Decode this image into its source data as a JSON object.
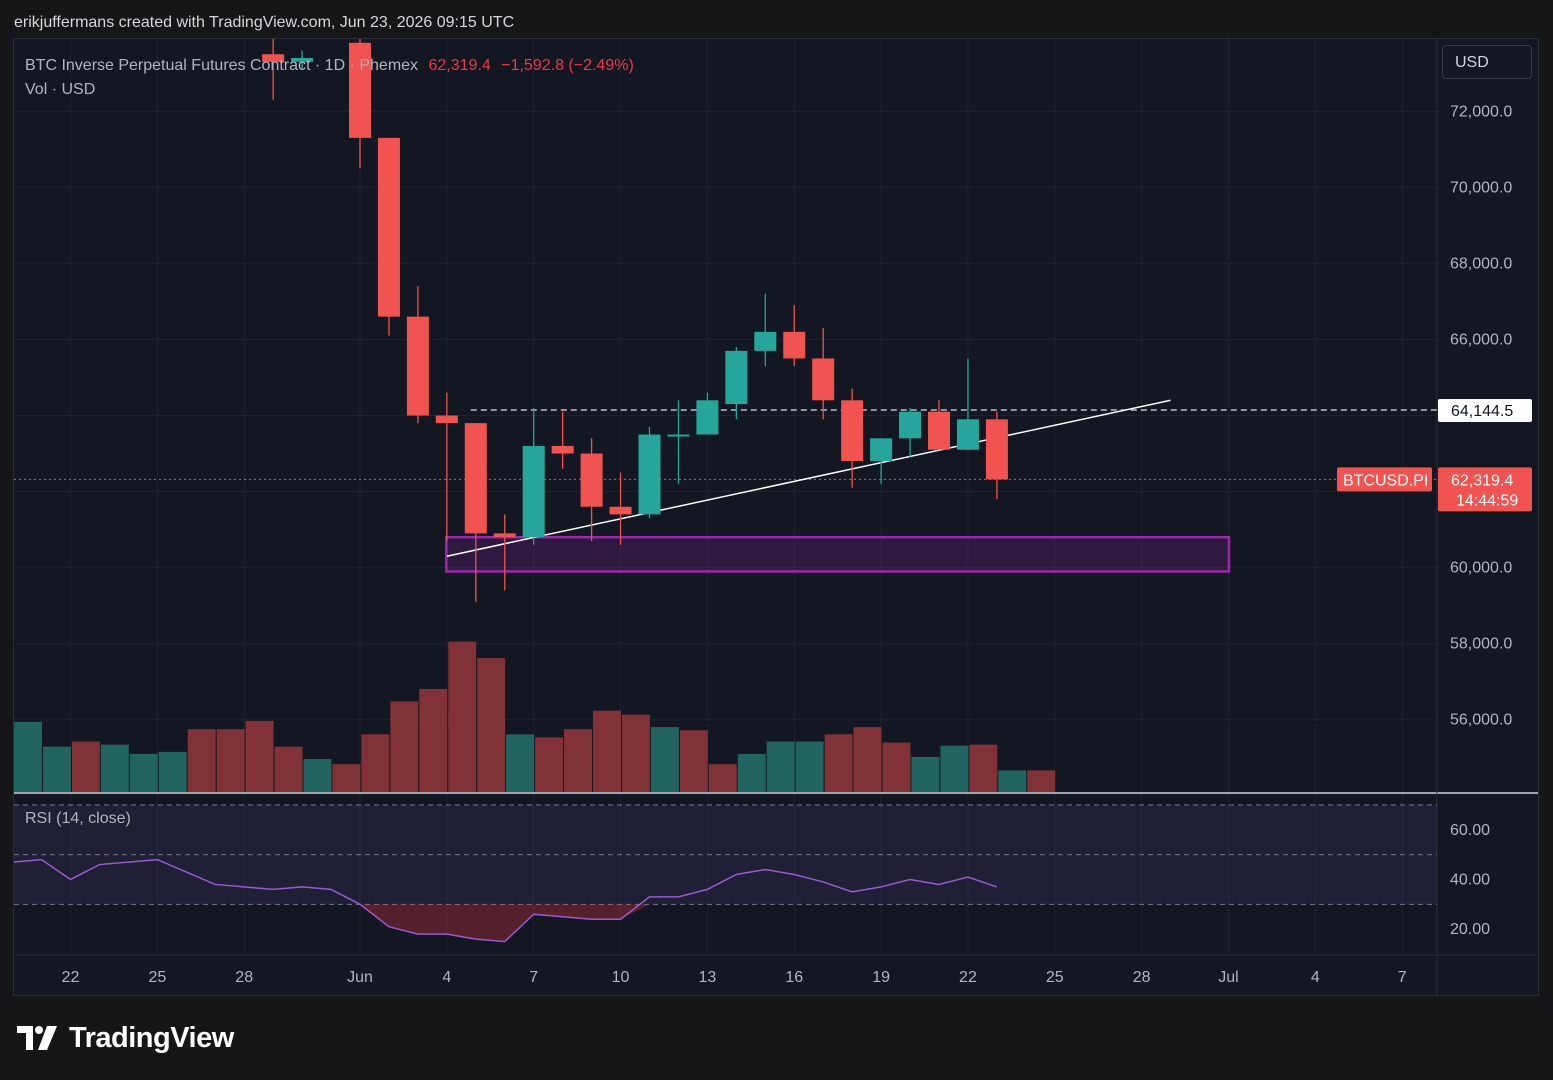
{
  "header": {
    "author_line": "erikjuffermans created with TradingView.com, Jun 23, 2026 09:15 UTC"
  },
  "legend": {
    "symbol": "BTC Inverse Perpetual Futures Contract · 1D · Phemex",
    "last": "62,319.4",
    "change": "−1,592.8 (−2.49%)",
    "volume_label": "Vol · USD"
  },
  "currency_button": "USD",
  "price_scale_labels": [
    "72,000.0",
    "70,000.0",
    "68,000.0",
    "66,000.0",
    "60,000.0",
    "58,000.0",
    "56,000.0"
  ],
  "horizontal_line_label": "64,144.5",
  "last_price": {
    "symbol": "BTCUSD.PI",
    "price": "62,319.4",
    "countdown": "14:44:59"
  },
  "rsi": {
    "label": "RSI (14, close)",
    "scale_labels": [
      "60.00",
      "40.00",
      "20.00"
    ]
  },
  "time_axis_labels": [
    "22",
    "25",
    "28",
    "Jun",
    "4",
    "7",
    "10",
    "13",
    "16",
    "19",
    "22",
    "25",
    "28",
    "Jul",
    "4",
    "7"
  ],
  "branding": {
    "logo_text": "TradingView"
  },
  "colors": {
    "up": "#26a69a",
    "down": "#f05350",
    "background": "#131722",
    "zone": "#9c27b0",
    "rsi_line": "#9c59d1"
  },
  "chart_data": {
    "type": "candlestick",
    "ylim": [
      54100,
      73900
    ],
    "x_axis_ticks": [
      "22",
      "25",
      "28",
      "Jun",
      "4",
      "7",
      "10",
      "13",
      "16",
      "19",
      "22",
      "25",
      "28",
      "Jul",
      "4",
      "7"
    ],
    "candles": [
      {
        "date": "May 29",
        "open": 73500,
        "high": 73900,
        "low": 72300,
        "close": 73300
      },
      {
        "date": "May 30",
        "open": 73300,
        "high": 73600,
        "low": 73100,
        "close": 73400
      },
      {
        "date": "Jun 1",
        "open": 73800,
        "high": 73900,
        "low": 70500,
        "close": 71300
      },
      {
        "date": "Jun 2",
        "open": 71300,
        "high": 71300,
        "low": 66100,
        "close": 66600
      },
      {
        "date": "Jun 3",
        "open": 66600,
        "high": 67400,
        "low": 63800,
        "close": 64000
      },
      {
        "date": "Jun 4",
        "open": 64000,
        "high": 64600,
        "low": 60700,
        "close": 63800
      },
      {
        "date": "Jun 5",
        "open": 63800,
        "high": 63800,
        "low": 59100,
        "close": 60900
      },
      {
        "date": "Jun 6",
        "open": 60900,
        "high": 61400,
        "low": 59400,
        "close": 60800
      },
      {
        "date": "Jun 7",
        "open": 60800,
        "high": 64200,
        "low": 60600,
        "close": 63200
      },
      {
        "date": "Jun 8",
        "open": 63200,
        "high": 64100,
        "low": 62600,
        "close": 63000
      },
      {
        "date": "Jun 9",
        "open": 63000,
        "high": 63400,
        "low": 60700,
        "close": 61600
      },
      {
        "date": "Jun 10",
        "open": 61600,
        "high": 62500,
        "low": 60600,
        "close": 61400
      },
      {
        "date": "Jun 11",
        "open": 61400,
        "high": 63700,
        "low": 61300,
        "close": 63500
      },
      {
        "date": "Jun 12",
        "open": 63500,
        "high": 64400,
        "low": 62200,
        "close": 63500
      },
      {
        "date": "Jun 13",
        "open": 63500,
        "high": 64600,
        "low": 63500,
        "close": 64400
      },
      {
        "date": "Jun 14",
        "open": 64300,
        "high": 65800,
        "low": 63900,
        "close": 65700
      },
      {
        "date": "Jun 15",
        "open": 65700,
        "high": 67200,
        "low": 65300,
        "close": 66200
      },
      {
        "date": "Jun 16",
        "open": 66200,
        "high": 66900,
        "low": 65300,
        "close": 65500
      },
      {
        "date": "Jun 17",
        "open": 65500,
        "high": 66300,
        "low": 63900,
        "close": 64400
      },
      {
        "date": "Jun 18",
        "open": 64400,
        "high": 64700,
        "low": 62100,
        "close": 62800
      },
      {
        "date": "Jun 19",
        "open": 62800,
        "high": 63400,
        "low": 62200,
        "close": 63400
      },
      {
        "date": "Jun 20",
        "open": 63400,
        "high": 64200,
        "low": 62900,
        "close": 64100
      },
      {
        "date": "Jun 21",
        "open": 64100,
        "high": 64400,
        "low": 63100,
        "close": 63100
      },
      {
        "date": "Jun 22",
        "open": 63100,
        "high": 65500,
        "low": 63100,
        "close": 63900
      },
      {
        "date": "Jun 23",
        "open": 63900,
        "high": 64100,
        "low": 61800,
        "close": 62319.4
      }
    ],
    "horizontal_line": 64144.5,
    "last_price": 62319.4,
    "trendline": {
      "from": {
        "date": "Jun 4",
        "price": 60300
      },
      "to": {
        "date": "Jun 29",
        "price": 64400
      }
    },
    "support_zone": {
      "from": "Jun 4",
      "to": "Jul 1",
      "low": 59900,
      "high": 60800
    },
    "volume": {
      "direction": [
        "up",
        "up",
        "down",
        "up",
        "up",
        "up",
        "down",
        "down",
        "down",
        "down",
        "up",
        "down",
        "down",
        "down",
        "down",
        "down",
        "down",
        "up",
        "down",
        "down",
        "down",
        "down",
        "up",
        "down",
        "down",
        "up",
        "up",
        "up",
        "down",
        "down",
        "down",
        "up",
        "up",
        "down",
        "up",
        "down"
      ],
      "levels": [
        0.68,
        0.44,
        0.49,
        0.46,
        0.37,
        0.39,
        0.61,
        0.61,
        0.69,
        0.44,
        0.32,
        0.27,
        0.56,
        0.88,
        1.0,
        1.46,
        1.3,
        0.56,
        0.53,
        0.61,
        0.79,
        0.75,
        0.63,
        0.6,
        0.27,
        0.37,
        0.49,
        0.49,
        0.56,
        0.63,
        0.48,
        0.34,
        0.45,
        0.46,
        0.21,
        0.21
      ]
    },
    "rsi": {
      "name": "RSI (14, close)",
      "ylim": [
        10,
        74
      ],
      "bands": {
        "upper": 70,
        "middle": 50,
        "lower": 30
      },
      "values": [
        47,
        48,
        40,
        46,
        47,
        48,
        43,
        38,
        37,
        36,
        37,
        36,
        30,
        21,
        18,
        18,
        16,
        15,
        26,
        25,
        24,
        24,
        33,
        33,
        36,
        42,
        44,
        42,
        39,
        35,
        37,
        40,
        38,
        41,
        37
      ]
    }
  }
}
